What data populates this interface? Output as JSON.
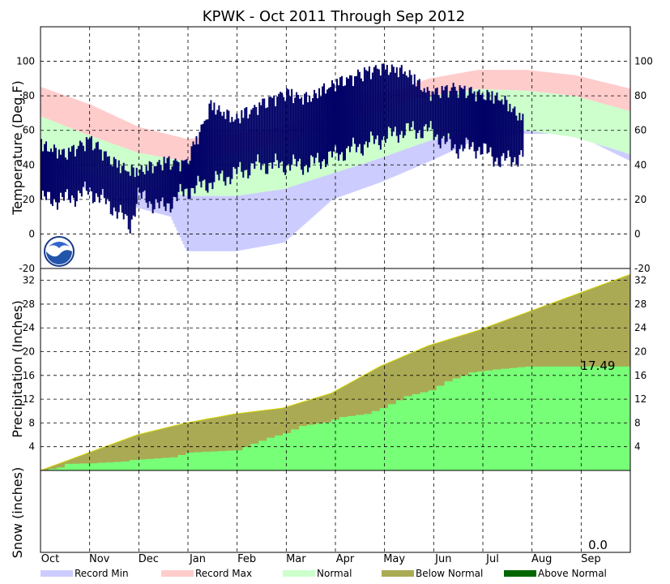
{
  "chart_data": [
    {
      "type": "area",
      "panel": "temperature",
      "title": "KPWK - Oct 2011 Through Sep 2012",
      "ylabel": "Temperature (Deg.F)",
      "ylim": [
        -20,
        120
      ],
      "yticks": [
        -20,
        0,
        20,
        40,
        60,
        80,
        100
      ],
      "grid": true,
      "months": [
        "Oct",
        "Nov",
        "Dec",
        "Jan",
        "Feb",
        "Mar",
        "Apr",
        "May",
        "Jun",
        "Jul",
        "Aug",
        "Sep"
      ],
      "series": [
        {
          "name": "Record Min",
          "color": "#ccccff",
          "x": [
            0,
            30,
            60,
            80,
            90,
            120,
            150,
            180,
            210,
            240,
            270,
            300,
            330,
            365
          ],
          "values": [
            38,
            25,
            15,
            10,
            -10,
            -10,
            -5,
            20,
            30,
            42,
            55,
            58,
            58,
            42
          ]
        },
        {
          "name": "Record Max",
          "color": "#ffcccc",
          "x": [
            0,
            30,
            60,
            90,
            120,
            150,
            180,
            210,
            240,
            270,
            300,
            330,
            365
          ],
          "values": [
            85,
            75,
            62,
            55,
            58,
            62,
            72,
            80,
            90,
            95,
            95,
            92,
            84
          ]
        },
        {
          "name": "Normal",
          "color": "#ccffcc",
          "x": [
            0,
            30,
            60,
            90,
            120,
            150,
            180,
            210,
            240,
            270,
            300,
            330,
            365
          ],
          "values": [
            [
              45,
              68
            ],
            [
              35,
              57
            ],
            [
              28,
              47
            ],
            [
              22,
              42
            ],
            [
              22,
              47
            ],
            [
              26,
              53
            ],
            [
              35,
              62
            ],
            [
              44,
              72
            ],
            [
              54,
              80
            ],
            [
              60,
              84
            ],
            [
              60,
              83
            ],
            [
              56,
              80
            ],
            [
              46,
              71
            ]
          ]
        },
        {
          "name": "Observed",
          "color": "#000066",
          "x": [
            0,
            15,
            30,
            45,
            55,
            60,
            75,
            90,
            105,
            120,
            135,
            150,
            165,
            180,
            195,
            210,
            225,
            240,
            255,
            270,
            285,
            298
          ],
          "values": [
            [
              20,
              55
            ],
            [
              20,
              50
            ],
            [
              25,
              58
            ],
            [
              15,
              45
            ],
            [
              5,
              40
            ],
            [
              22,
              40
            ],
            [
              15,
              45
            ],
            [
              25,
              45
            ],
            [
              30,
              78
            ],
            [
              35,
              70
            ],
            [
              40,
              78
            ],
            [
              40,
              85
            ],
            [
              40,
              82
            ],
            [
              45,
              90
            ],
            [
              50,
              95
            ],
            [
              55,
              100
            ],
            [
              60,
              98
            ],
            [
              60,
              85
            ],
            [
              50,
              88
            ],
            [
              50,
              85
            ],
            [
              42,
              82
            ],
            [
              45,
              70
            ]
          ]
        }
      ]
    },
    {
      "type": "area",
      "panel": "precipitation",
      "ylabel": "Precipitation (Inches)",
      "ylim": [
        0,
        34
      ],
      "yticks": [
        4,
        8,
        12,
        16,
        20,
        24,
        28,
        32
      ],
      "grid": true,
      "annotation": "17.49",
      "series": [
        {
          "name": "Below Normal",
          "color": "#aaaa55",
          "x": [
            0,
            30,
            60,
            90,
            120,
            150,
            180,
            210,
            240,
            270,
            300,
            330,
            365
          ],
          "values": [
            0,
            3,
            6,
            8,
            9.5,
            10.5,
            13,
            17.5,
            21,
            23.5,
            26.5,
            29.5,
            33
          ]
        },
        {
          "name": "Observed",
          "color": "#77ff77",
          "x": [
            0,
            10,
            12,
            30,
            50,
            52,
            80,
            90,
            120,
            130,
            140,
            150,
            160,
            175,
            185,
            200,
            210,
            225,
            240,
            250,
            265,
            280,
            300,
            365
          ],
          "values": [
            0,
            0.5,
            1.1,
            1.2,
            1.5,
            1.7,
            2.2,
            3,
            3.4,
            4.5,
            5.5,
            6.3,
            7.5,
            8.1,
            9,
            9.5,
            10.5,
            12.5,
            13.5,
            15,
            16.5,
            17,
            17.49,
            17.49
          ]
        }
      ]
    },
    {
      "type": "area",
      "panel": "snow",
      "ylabel": "Snow (inches)",
      "annotation": "0.0",
      "series": []
    }
  ],
  "legend": [
    {
      "label": "Record Min",
      "color": "#ccccff"
    },
    {
      "label": "Record Max",
      "color": "#ffcccc"
    },
    {
      "label": "Normal",
      "color": "#ccffcc"
    },
    {
      "label": "Below Normal",
      "color": "#aaaa55"
    },
    {
      "label": "Above Normal",
      "color": "#006600"
    }
  ]
}
